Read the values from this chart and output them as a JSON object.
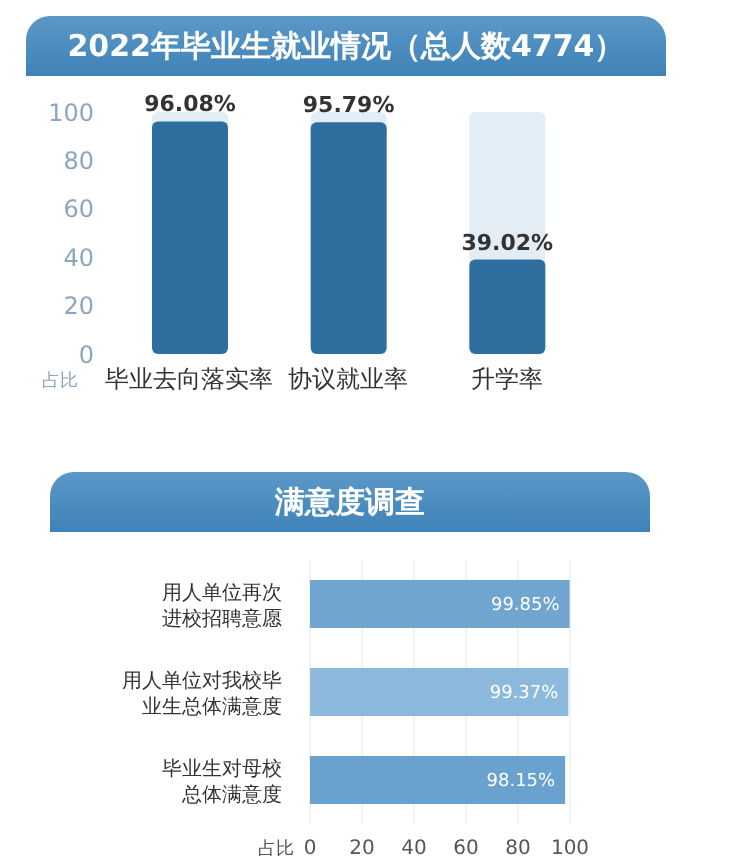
{
  "chart_data": [
    {
      "type": "bar",
      "title": "2022年毕业生就业情况（总人数4774）",
      "ylabel": "占比",
      "categories": [
        "毕业去向落实率",
        "协议就业率",
        "升学率"
      ],
      "values": [
        96.08,
        95.79,
        39.02
      ],
      "color": "#2f6f9f",
      "value_labels": [
        "96.08%",
        "95.79%",
        "39.02%"
      ],
      "ylim": [
        0,
        100
      ],
      "yticks": [
        0,
        20,
        40,
        60,
        80,
        100
      ],
      "grid": false
    },
    {
      "type": "bar",
      "orientation": "horizontal",
      "title": "满意度调查",
      "xlabel": "占比",
      "categories": [
        "用人单位再次进校招聘意愿",
        "用人单位对我校毕业生总体满意度",
        "毕业生对母校总体满意度"
      ],
      "values": [
        99.85,
        99.37,
        98.15
      ],
      "colors": [
        "#6fa5cf",
        "#8dbadc",
        "#6aa2cf"
      ],
      "value_labels": [
        "99.85%",
        "99.37%",
        "98.15%"
      ],
      "xlim": [
        0,
        100
      ],
      "xticks": [
        0,
        20,
        40,
        60,
        80,
        100
      ],
      "grid": "x"
    }
  ]
}
